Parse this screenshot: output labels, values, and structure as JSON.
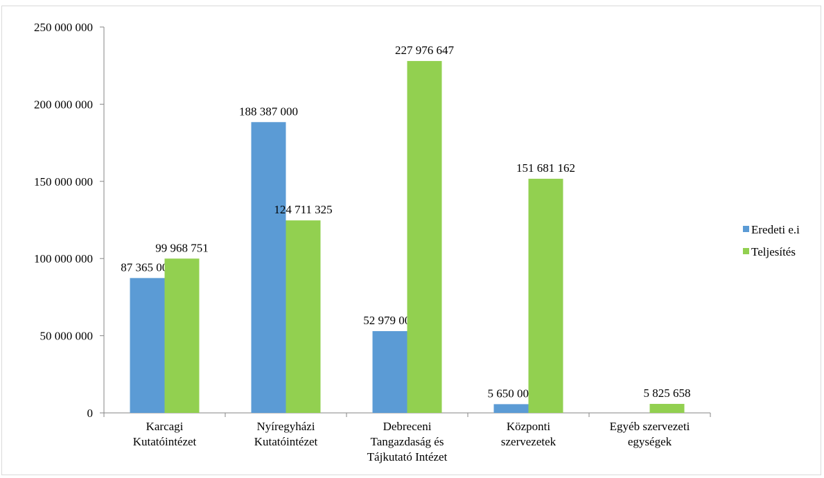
{
  "chart_data": {
    "type": "bar",
    "categories": [
      [
        "Karcagi",
        "Kutatóintézet"
      ],
      [
        "Nyíregyházi",
        "Kutatóintézet"
      ],
      [
        "Debreceni",
        "Tangazdaság és",
        "Tájkutató Intézet"
      ],
      [
        "Központi",
        "szervezetek"
      ],
      [
        "Egyéb szervezeti",
        "egységek"
      ]
    ],
    "series": [
      {
        "name": "Eredeti e.i",
        "color": "#5b9bd5",
        "values": [
          87365000,
          188387000,
          52979000,
          5650000,
          null
        ],
        "labels": [
          "87 365 000",
          "188 387 000",
          "52 979 000",
          "5 650 000",
          ""
        ]
      },
      {
        "name": "Teljesítés",
        "color": "#92d050",
        "values": [
          99968751,
          124711325,
          227976647,
          151681162,
          5825658
        ],
        "labels": [
          "99 968 751",
          "124 711 325",
          "227 976 647",
          "151 681 162",
          "5 825 658"
        ]
      }
    ],
    "ylim": [
      0,
      250000000
    ],
    "yticks": [
      0,
      50000000,
      100000000,
      150000000,
      200000000,
      250000000
    ],
    "ytick_labels": [
      "0",
      "50 000 000",
      "100 000 000",
      "150 000 000",
      "200 000 000",
      "250 000 000"
    ],
    "legend": "right",
    "grid": false
  }
}
